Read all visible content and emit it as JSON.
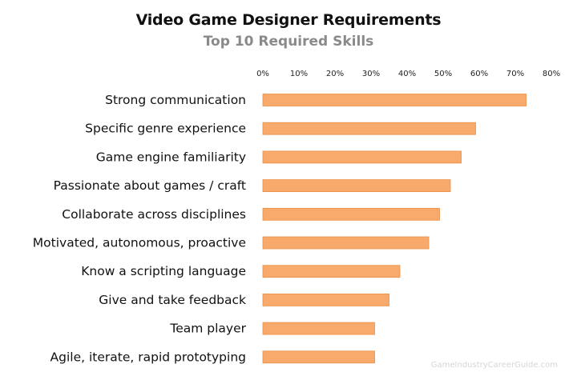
{
  "chart_data": {
    "type": "bar",
    "orientation": "horizontal",
    "title": "Video Game Designer Requirements",
    "subtitle": "Top 10 Required Skills",
    "categories": [
      "Strong communication",
      "Specific genre experience",
      "Game engine familiarity",
      "Passionate about games / craft",
      "Collaborate across disciplines",
      "Motivated, autonomous, proactive",
      "Know a scripting language",
      "Give and take feedback",
      "Team player",
      "Agile, iterate, rapid prototyping"
    ],
    "values": [
      73,
      59,
      55,
      52,
      49,
      46,
      38,
      35,
      31,
      31
    ],
    "value_unit": "%",
    "xlim": [
      0,
      80
    ],
    "xticks": [
      "0%",
      "10%",
      "20%",
      "30%",
      "40%",
      "50%",
      "60%",
      "70%",
      "80%"
    ],
    "xaxis_position": "top",
    "grid": false,
    "bar_color": "#f7aa6b",
    "bar_edge_color": "#ec8f45",
    "watermark": "GameIndustryCareerGuide.com"
  }
}
